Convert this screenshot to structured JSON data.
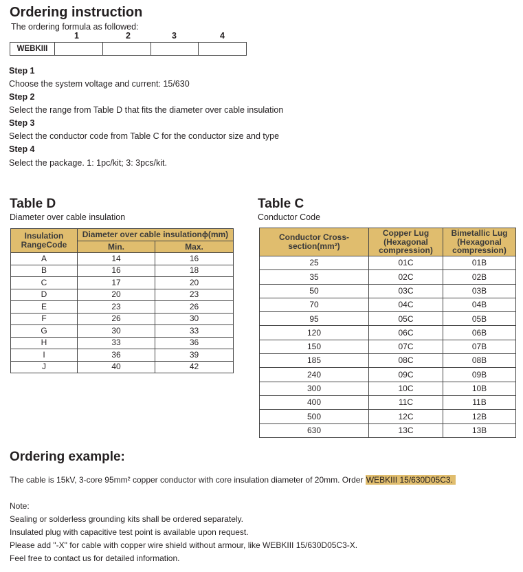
{
  "title": "Ordering instruction",
  "formula_intro": "The ordering formula as followed:",
  "formula": {
    "prefix": "WEBKIII",
    "positions": [
      "1",
      "2",
      "3",
      "4"
    ]
  },
  "steps": [
    {
      "label": "Step 1",
      "text": "Choose the system voltage and current: 15/630"
    },
    {
      "label": "Step 2",
      "text": "Select the range from Table D that fits the diameter over cable insulation"
    },
    {
      "label": "Step 3",
      "text": "Select the conductor code from Table C for the conductor size and type"
    },
    {
      "label": "Step 4",
      "text": "Select the package. 1: 1pc/kit; 3: 3pcs/kit."
    }
  ],
  "table_d": {
    "title": "Table D",
    "subtitle": "Diameter over cable insulation",
    "headers": {
      "code": "Insulation RangeCode",
      "diameter": "Diameter over cable insulationϕ(mm)",
      "min": "Min.",
      "max": "Max."
    },
    "rows": [
      [
        "A",
        "14",
        "16"
      ],
      [
        "B",
        "16",
        "18"
      ],
      [
        "C",
        "17",
        "20"
      ],
      [
        "D",
        "20",
        "23"
      ],
      [
        "E",
        "23",
        "26"
      ],
      [
        "F",
        "26",
        "30"
      ],
      [
        "G",
        "30",
        "33"
      ],
      [
        "H",
        "33",
        "36"
      ],
      [
        "I",
        "36",
        "39"
      ],
      [
        "J",
        "40",
        "42"
      ]
    ]
  },
  "table_c": {
    "title": "Table C",
    "subtitle": "Conductor Code",
    "headers": {
      "cross": "Conductor Cross-section(mm²)",
      "copper": "Copper Lug (Hexagonal compression)",
      "bimetallic": "Bimetallic Lug (Hexagonal compression)"
    },
    "rows": [
      [
        "25",
        "01C",
        "01B"
      ],
      [
        "35",
        "02C",
        "02B"
      ],
      [
        "50",
        "03C",
        "03B"
      ],
      [
        "70",
        "04C",
        "04B"
      ],
      [
        "95",
        "05C",
        "05B"
      ],
      [
        "120",
        "06C",
        "06B"
      ],
      [
        "150",
        "07C",
        "07B"
      ],
      [
        "185",
        "08C",
        "08B"
      ],
      [
        "240",
        "09C",
        "09B"
      ],
      [
        "300",
        "10C",
        "10B"
      ],
      [
        "400",
        "11C",
        "11B"
      ],
      [
        "500",
        "12C",
        "12B"
      ],
      [
        "630",
        "13C",
        "13B"
      ]
    ]
  },
  "example": {
    "title": "Ordering example:",
    "text": "The cable is 15kV, 3-core 95mm² copper conductor with core insulation diameter of 20mm. Order ",
    "code": "WEBKIII 15/630D05C3."
  },
  "notes": {
    "label": "Note:",
    "lines": [
      "Sealing or solderless grounding kits shall be ordered separately.",
      "Insulated plug with capacitive test point is available upon request.",
      "Please add \"-X\" for cable with copper wire shield without armour,  like WEBKIII 15/630D05C3-X.",
      "Feel free to contact us for detailed information."
    ]
  },
  "colors": {
    "header_bg": "#e0bd6e",
    "highlight": "#e0bd6e"
  }
}
